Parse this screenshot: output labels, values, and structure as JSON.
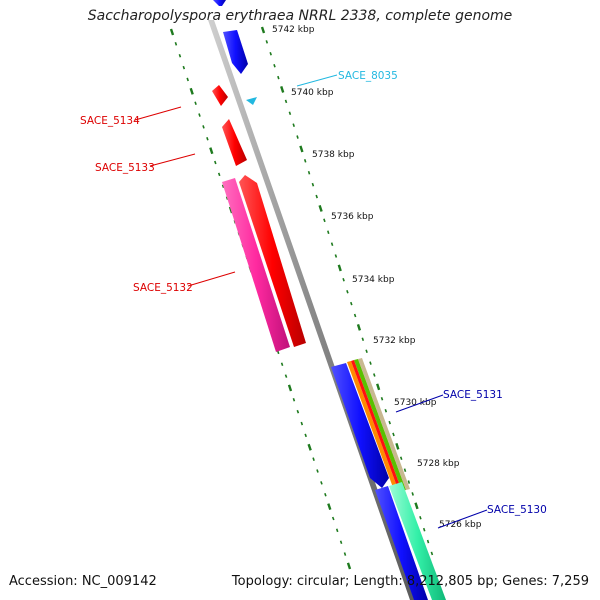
{
  "header": {
    "title": "Saccharopolyspora erythraea NRRL 2338, complete genome"
  },
  "footer": {
    "accession": "Accession: NC_009142",
    "summary": "Topology: circular; Length: 8,212,805 bp; Genes: 7,259"
  },
  "map": {
    "ticks": [
      "5742 kbp",
      "5740 kbp",
      "5738 kbp",
      "5736 kbp",
      "5734 kbp",
      "5732 kbp",
      "5730 kbp",
      "5728 kbp",
      "5726 kbp"
    ],
    "gene_labels": {
      "sace_8035": "SACE_8035",
      "sace_5134": "SACE_5134",
      "sace_5133": "SACE_5133",
      "sace_5132": "SACE_5132",
      "sace_5131": "SACE_5131",
      "sace_5130": "SACE_5130"
    },
    "colors": {
      "backbone": "#9a9a9a",
      "tick_marks": "#1e7a1e",
      "red_gene": "#ff1010",
      "pink_gene": "#ff2aa0",
      "blue_gene": "#1414ff",
      "cyan_gene": "#22b8e0",
      "teal_gene": "#33f0a8",
      "dark_blue_label": "#0000aa"
    }
  }
}
